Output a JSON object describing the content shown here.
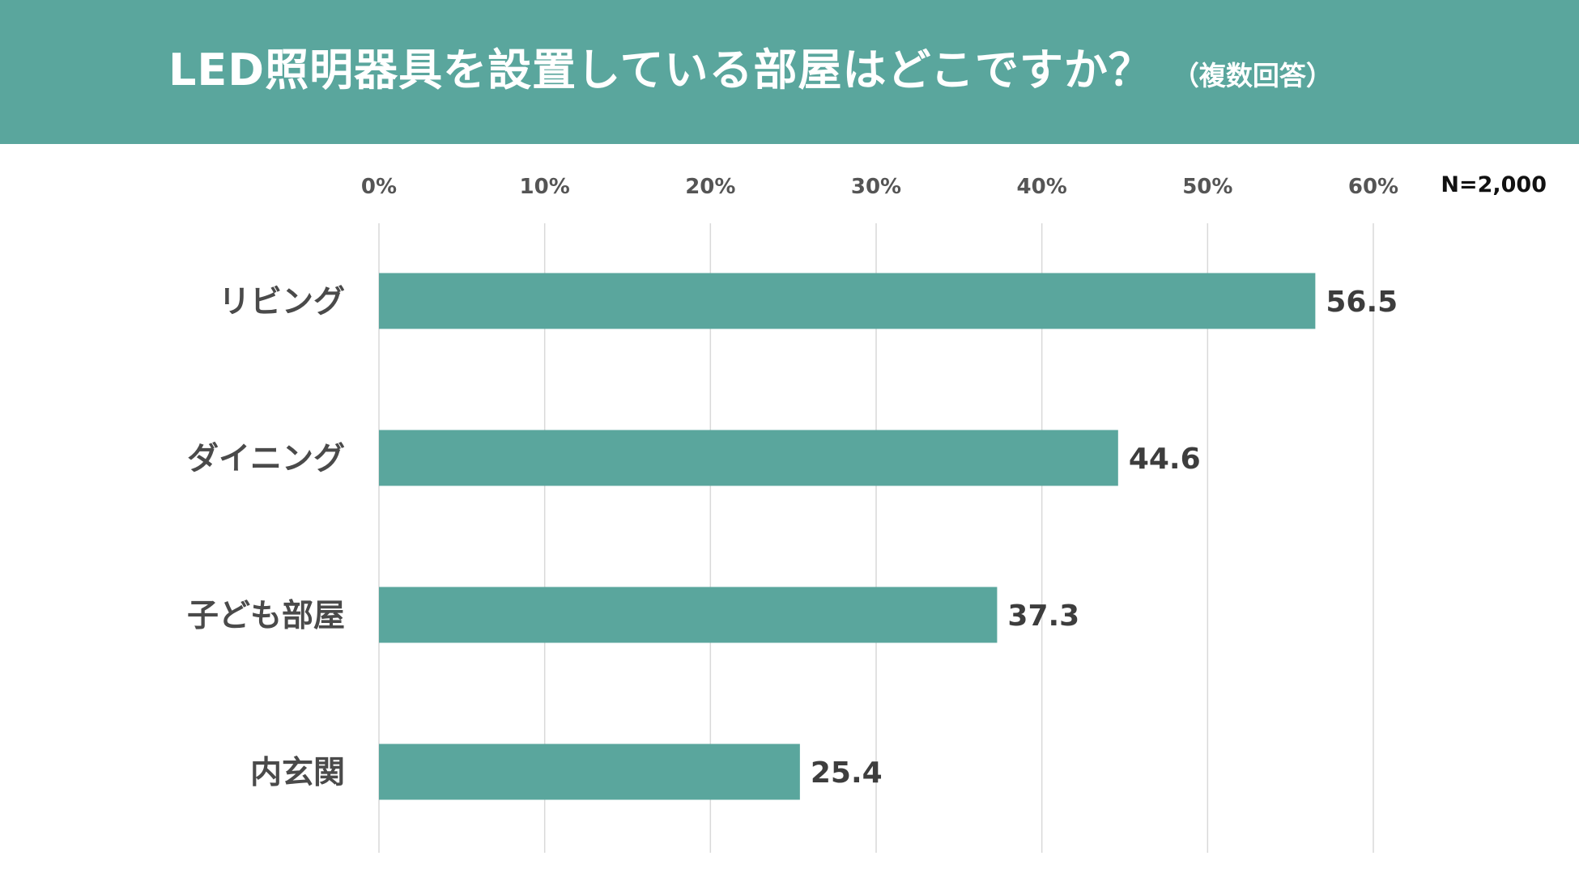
{
  "header": {
    "title": "LED照明器具を設置している部屋はどこですか？",
    "subtitle": "（複数回答）"
  },
  "colors": {
    "header_bg": "#5aa69d",
    "bar": "#5aa69d",
    "grid": "#d9d9d9"
  },
  "chart_data": {
    "type": "bar",
    "orientation": "horizontal",
    "title": "LED照明器具を設置している部屋はどこですか？",
    "subtitle": "（複数回答）",
    "categories": [
      "リビング",
      "ダイニング",
      "子ども部屋",
      "内玄関"
    ],
    "values": [
      56.5,
      44.6,
      37.3,
      25.4
    ],
    "value_labels": [
      "56.5",
      "44.6",
      "37.3",
      "25.4"
    ],
    "xlim": [
      0,
      60
    ],
    "xticks": [
      0,
      10,
      20,
      30,
      40,
      50,
      60
    ],
    "xtick_labels": [
      "0%",
      "10%",
      "20%",
      "30%",
      "40%",
      "50%",
      "60%"
    ],
    "xlabel": "",
    "ylabel": "",
    "note": "N=2,000",
    "grid": true,
    "legend": "none"
  }
}
